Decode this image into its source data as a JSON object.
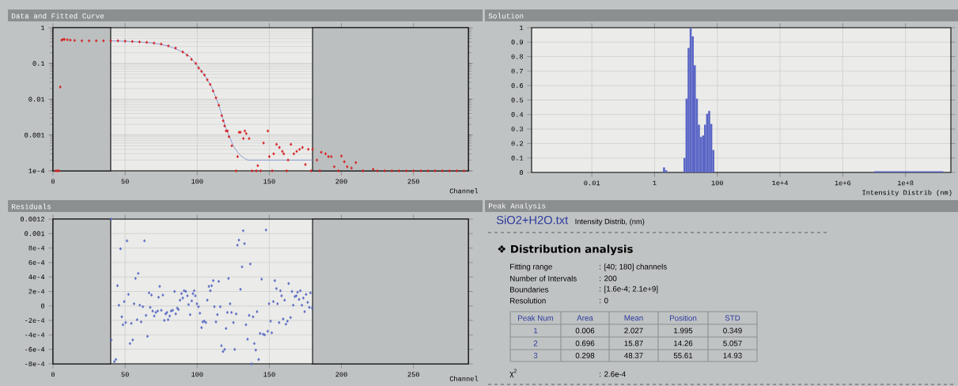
{
  "chart_data": [
    {
      "type": "scatter",
      "title": "Data and Fitted Curve",
      "xlabel": "Channel",
      "log": true,
      "grid": true,
      "xlim": [
        0,
        288
      ],
      "ylim": [
        0.0001,
        1
      ],
      "xticks": [
        0,
        50,
        100,
        150,
        200,
        250
      ],
      "yticks": [
        {
          "value": 0.0001,
          "label": "1e-4"
        },
        0.001,
        0.01,
        0.1,
        1
      ],
      "bands": [
        {
          "axis": "x",
          "from": 0,
          "to": 40,
          "color": "#bcbfc0"
        },
        {
          "axis": "x",
          "from": 180,
          "to": 288,
          "color": "#bcbfc0"
        }
      ],
      "series": [
        {
          "color": "#d42424",
          "marker": "diamond",
          "x": [
            2,
            3,
            4,
            5,
            6,
            7,
            8,
            10,
            12,
            15,
            20,
            25,
            30,
            35,
            40,
            45,
            50,
            55,
            60,
            65,
            70,
            75,
            80,
            85,
            90,
            93,
            96,
            99,
            101,
            103,
            105,
            107,
            109,
            111,
            113,
            115,
            117,
            118,
            119,
            120,
            121,
            122,
            124,
            127,
            128,
            129,
            130,
            132,
            133,
            134,
            136,
            138,
            141,
            142,
            144,
            146,
            149,
            150,
            152,
            153,
            155,
            157,
            159,
            160,
            162,
            163,
            165,
            167,
            169,
            171,
            173,
            175,
            177,
            179,
            180,
            183,
            185,
            186,
            189,
            191,
            193,
            195,
            198,
            200,
            202,
            204,
            207,
            210,
            215,
            222,
            225,
            230,
            235,
            240,
            245,
            250,
            255,
            260,
            265,
            270,
            275,
            280,
            285
          ],
          "values": [
            0.0001,
            0.0001,
            0.0001,
            0.022,
            0.45,
            0.47,
            0.47,
            0.46,
            0.45,
            0.44,
            0.43,
            0.43,
            0.43,
            0.43,
            0.43,
            0.43,
            0.42,
            0.41,
            0.4,
            0.39,
            0.37,
            0.35,
            0.31,
            0.27,
            0.21,
            0.17,
            0.13,
            0.1,
            0.075,
            0.06,
            0.048,
            0.035,
            0.026,
            0.017,
            0.011,
            0.0068,
            0.0035,
            0.0025,
            0.0018,
            0.0013,
            0.0013,
            0.0009,
            0.0005,
            0.0001,
            0.00025,
            0.0012,
            0.0012,
            0.0008,
            0.0013,
            0.0011,
            0.0008,
            0.0001,
            0.0001,
            0.00014,
            0.0001,
            0.0006,
            0.0013,
            0.00025,
            0.0001,
            0.0003,
            0.00055,
            0.00045,
            0.00035,
            0.0003,
            0.0001,
            0.0002,
            0.00055,
            0.0003,
            0.00035,
            0.0004,
            0.00045,
            0.00015,
            0.0004,
            0.0001,
            0.0004,
            0.0002,
            0.0001,
            0.00033,
            0.0003,
            0.00025,
            0.00025,
            0.00013,
            0.0001,
            0.00026,
            0.00018,
            0.00013,
            0.00012,
            0.00017,
            0.0001,
            0.00011,
            0.0001,
            0.0001,
            0.0001,
            0.0001,
            0.0001,
            0.0001,
            0.0001,
            0.0001,
            0.0001,
            0.0001,
            0.0001,
            0.0001,
            0.0001
          ]
        },
        {
          "type": "line",
          "color": "#8894cc",
          "x": [
            40,
            50,
            60,
            70,
            80,
            90,
            95,
            100,
            105,
            110,
            115,
            118,
            120,
            123,
            125,
            128,
            130,
            133,
            135,
            140,
            180
          ],
          "values": [
            0.43,
            0.42,
            0.4,
            0.37,
            0.31,
            0.21,
            0.155,
            0.088,
            0.048,
            0.022,
            0.0068,
            0.0028,
            0.0015,
            0.0008,
            0.0005,
            0.00033,
            0.00027,
            0.00022,
            0.0002,
            0.0002,
            0.0002
          ]
        }
      ]
    },
    {
      "type": "histogram",
      "title": "Solution",
      "xlabel": "Intensity Distrib (nm)",
      "log": "x",
      "grid": true,
      "xlim": [
        0.00012,
        2800000000
      ],
      "ylim": [
        0,
        1
      ],
      "xticks": [
        0.01,
        1,
        100,
        {
          "value": 10000,
          "label": "1e+4"
        },
        {
          "value": 1000000,
          "label": "1e+6"
        },
        {
          "value": 100000000,
          "label": "1e+8"
        }
      ],
      "yticks": [
        0,
        0.1,
        0.2,
        0.3,
        0.4,
        0.5,
        0.6,
        0.7,
        0.8,
        0.9,
        1
      ],
      "color": "#5a66c6",
      "bins": [
        1.86,
        2.16,
        2.51,
        8.35,
        9.71,
        11.29,
        13.13,
        15.27,
        17.76,
        20.66,
        24.02,
        27.94,
        32.49,
        37.79,
        43.95,
        51.11,
        59.44,
        69.13,
        80.4,
        10000000,
        16000000,
        25000000,
        40000000,
        63000000,
        100000000,
        160000000,
        250000000,
        400000000,
        630000000,
        1000000000,
        1600000000
      ],
      "values": [
        0.035,
        0.015,
        0,
        0.1,
        0.51,
        0.86,
        1.0,
        0.94,
        0.74,
        0.51,
        0.33,
        0.245,
        0.255,
        0.33,
        0.405,
        0.425,
        0.335,
        0.155,
        0,
        0.008,
        0.008,
        0.008,
        0.008,
        0.008,
        0.008,
        0.008,
        0.008,
        0.008,
        0.008,
        0.008
      ]
    },
    {
      "type": "scatter",
      "title": "Residuals",
      "xlabel": "Channel",
      "grid": true,
      "xlim": [
        0,
        288
      ],
      "ylim": [
        -0.0008,
        0.0012
      ],
      "xticks": [
        0,
        50,
        100,
        150,
        200,
        250
      ],
      "yticks": [
        {
          "value": -0.0008,
          "label": "-8e-4"
        },
        {
          "value": -0.0006,
          "label": "-6e-4"
        },
        {
          "value": -0.0004,
          "label": "-4e-4"
        },
        {
          "value": -0.0002,
          "label": "-2e-4"
        },
        0,
        {
          "value": 0.0002,
          "label": "2e-4"
        },
        {
          "value": 0.0004,
          "label": "4e-4"
        },
        {
          "value": 0.0006,
          "label": "6e-4"
        },
        {
          "value": 0.0008,
          "label": "8e-4"
        },
        0.001,
        0.0012
      ],
      "bands": [
        {
          "axis": "x",
          "from": 0,
          "to": 40,
          "color": "#bcbfc0"
        },
        {
          "axis": "x",
          "from": 180,
          "to": 288,
          "color": "#bcbfc0"
        }
      ],
      "series": [
        {
          "color": "#5b6bc4",
          "marker": "diamond",
          "x": [
            40.4,
            40.4,
            42.5,
            43.6,
            44.7,
            45.7,
            46.8,
            47.7,
            48.5,
            49.4,
            50.4,
            51.3,
            52.3,
            53.4,
            54.3,
            55.3,
            56.2,
            57.2,
            58.3,
            59.1,
            60.2,
            61.1,
            62.3,
            63.4,
            64.5,
            65.5,
            66.6,
            67.4,
            68.3,
            69.1,
            70.2,
            71.3,
            72.6,
            73.2,
            74.0,
            75.1,
            76.2,
            77.2,
            78.1,
            79.0,
            79.8,
            80.9,
            81.9,
            83.0,
            84.3,
            85.1,
            86.2,
            87.0,
            88.1,
            89.1,
            90.0,
            90.9,
            92.1,
            93.2,
            94.0,
            95.1,
            96.2,
            97.0,
            97.9,
            98.7,
            99.8,
            100.9,
            101.9,
            103.0,
            103.8,
            104.9,
            106.0,
            107.0,
            108.1,
            109.1,
            110.0,
            111.1,
            111.9,
            113.0,
            114.0,
            114.9,
            116.0,
            116.8,
            117.9,
            119.0,
            120.0,
            120.9,
            121.7,
            122.8,
            123.8,
            125.1,
            126.0,
            127.0,
            127.9,
            128.9,
            130.0,
            131.1,
            131.9,
            132.8,
            133.8,
            134.9,
            136.0,
            136.8,
            137.7,
            138.7,
            139.6,
            140.6,
            141.5,
            142.6,
            143.6,
            144.7,
            145.7,
            146.8,
            147.7,
            148.9,
            149.8,
            150.9,
            151.7,
            152.8,
            153.8,
            154.9,
            155.7,
            156.8,
            157.7,
            158.5,
            159.6,
            160.6,
            161.5,
            162.6,
            163.4,
            164.7,
            165.7,
            166.6,
            167.7,
            168.7,
            169.6,
            170.6,
            171.5,
            172.6,
            173.6,
            174.5,
            175.5,
            176.6,
            177.7,
            178.5,
            179.6
          ],
          "values": [
            0.0012,
            -0.00047,
            -0.00077,
            -0.00074,
            0.00028,
            1e-05,
            0.00079,
            -0.00015,
            -0.00026,
            6e-05,
            -0.00023,
            0.0009,
            0.00016,
            -0.00052,
            -0.00024,
            -0.00047,
            3e-05,
            0.00038,
            -0.00019,
            0.00045,
            1e-05,
            -0.00022,
            -1e-05,
            0.0009,
            -0.00013,
            -0.00042,
            0.00018,
            -2e-05,
            0.00015,
            -7e-05,
            -0.00014,
            -9e-05,
            -7e-05,
            0.00012,
            0.00027,
            -6e-05,
            0.00015,
            -0.0002,
            -0.00011,
            -9e-05,
            -0.00019,
            -0.00014,
            -7e-05,
            -6e-05,
            0.0002,
            -0.00011,
            -3e-05,
            -5e-05,
            8e-05,
            0.00017,
            0.00011,
            0.00021,
            0.0002,
            0.00014,
            2e-05,
            -0.00012,
            7e-05,
            0.00017,
            0.00021,
            0.00014,
            3e-05,
            -1e-05,
            -0.0001,
            -0.0003,
            -0.00022,
            -0.00021,
            -0.00023,
            8e-05,
            0.00027,
            0.00021,
            0.00028,
            0.00035,
            -1e-05,
            -0.00022,
            -0.00012,
            0.00034,
            -1e-05,
            -0.00055,
            -0.00063,
            -0.0006,
            -0.00031,
            -9e-05,
            0.00038,
            3e-05,
            -9e-05,
            -0.00023,
            -0.0006,
            -0.00011,
            0.00084,
            0.00091,
            0.00023,
            0.00054,
            0.00104,
            0.00086,
            -0.00026,
            -0.00046,
            -0.00013,
            0.00058,
            -0.0008,
            -0.00015,
            -0.00052,
            -0.00061,
            -8e-05,
            -0.00074,
            -0.00038,
            0.00037,
            -0.00039,
            -0.0004,
            0.00105,
            -0.00035,
            3e-05,
            -0.00021,
            -0.00037,
            6e-05,
            0.00035,
            0.00024,
            3e-05,
            -0.00023,
            0.00021,
            0.00014,
            -0.00018,
            8e-05,
            -0.00025,
            -0.00021,
            0.00031,
            -0.00016,
            0.0002,
            1e-05,
            0.00013,
            0.00014,
            0.00019,
            9e-05,
            0.00021,
            1e-05,
            0.00011,
            -8e-05,
            0.00016,
            5e-05,
            -2e-05,
            0.00018,
            -3e-05
          ]
        }
      ]
    },
    {
      "type": "other",
      "title": "Peak Analysis",
      "subtitle": "SiO2+H2O.txt",
      "annotations": [
        "Intensity Distrib, (nm)",
        "❖ Distribution analysis",
        "Fitting range",
        ": [40; 180] channels",
        "Number of Intervals",
        ": 200",
        "Boundaries",
        ": [1.6e-4; 2.1e+9]",
        "Resolution",
        ": 0",
        "Peak Num",
        "Area",
        "Mean",
        "Position",
        "STD",
        "1",
        "0.006",
        "2.027",
        "1.995",
        "0.349",
        "2",
        "0.696",
        "15.87",
        "14.26",
        "5.057",
        "3",
        "0.298",
        "48.37",
        "55.61",
        "14.93",
        "χ$^{2}$",
        ": 2.6e-4"
      ]
    }
  ]
}
